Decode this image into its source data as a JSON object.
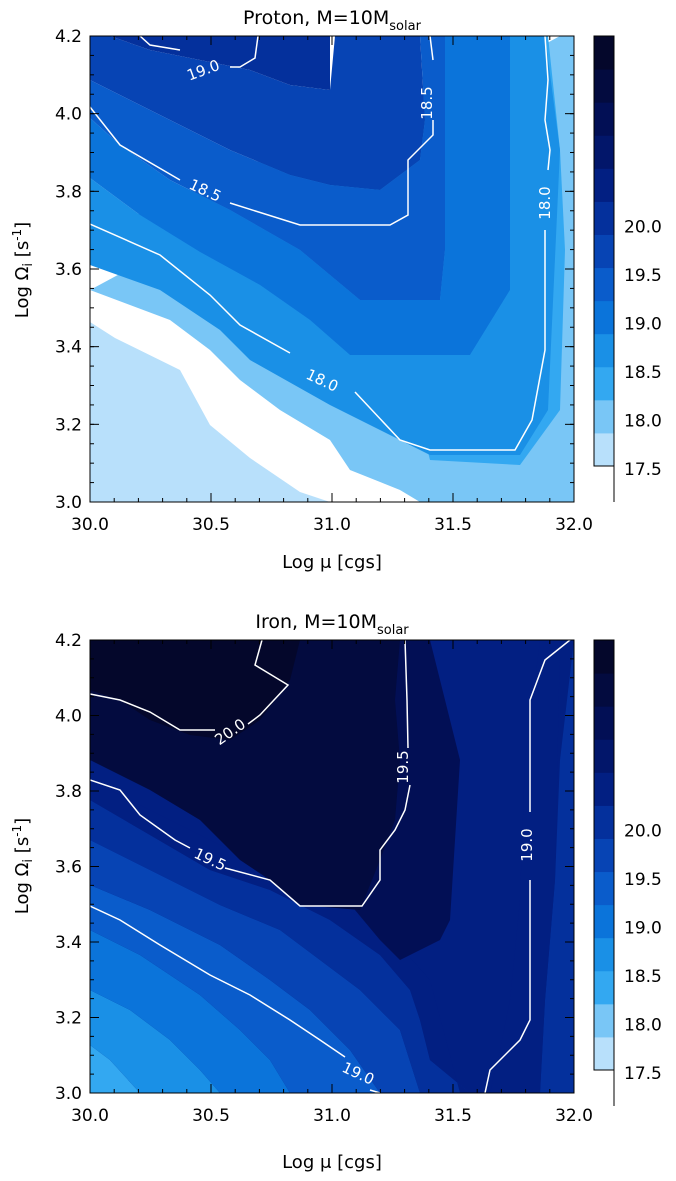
{
  "chart_data": [
    {
      "type": "contour",
      "title": "Proton, M=10M",
      "title_subscript": "solar",
      "xlabel": "Log μ [cgs]",
      "ylabel_main": "Log Ω",
      "ylabel_sub": "i",
      "ylabel_unit": "[s",
      "ylabel_exp": "-1",
      "ylabel_close": "]",
      "xlim": [
        30.0,
        32.0
      ],
      "ylim": [
        3.0,
        4.2
      ],
      "xticks": [
        "30.0",
        "30.5",
        "31.0",
        "31.5",
        "32.0"
      ],
      "yticks": [
        "3.0",
        "3.2",
        "3.4",
        "3.6",
        "3.8",
        "4.0",
        "4.2"
      ],
      "colorbar_ticks": [
        "17.5",
        "18.0",
        "18.5",
        "19.0",
        "19.5",
        "20.0"
      ],
      "colorbar_range": [
        17.25,
        20.25
      ],
      "grid": false,
      "filled_regions": [
        {
          "level": 17.5,
          "boundary": [
            [
              30.0,
              3.56
            ],
            [
              30.1,
              3.52
            ],
            [
              30.35,
              3.44
            ],
            [
              30.5,
              3.32
            ],
            [
              30.7,
              3.21
            ],
            [
              30.85,
              3.15
            ],
            [
              31.0,
              3.08
            ],
            [
              31.15,
              3.04
            ],
            [
              31.3,
              3.0
            ]
          ]
        },
        {
          "level": 17.75,
          "boundary": [
            [
              30.0,
              3.64
            ],
            [
              30.2,
              3.58
            ],
            [
              30.4,
              3.5
            ],
            [
              30.5,
              3.38
            ],
            [
              30.7,
              3.28
            ],
            [
              31.0,
              3.16
            ],
            [
              31.2,
              3.08
            ],
            [
              31.4,
              3.05
            ],
            [
              31.5,
              3.04
            ],
            [
              31.75,
              3.06
            ],
            [
              31.8,
              3.1
            ],
            [
              31.95,
              3.18
            ],
            [
              32.0,
              3.25
            ]
          ]
        },
        {
          "level": 18.0,
          "boundary": [
            [
              30.0,
              3.74
            ],
            [
              30.3,
              3.64
            ],
            [
              30.55,
              3.52
            ],
            [
              30.7,
              3.42
            ],
            [
              30.9,
              3.34
            ],
            [
              31.2,
              3.24
            ],
            [
              31.35,
              3.16
            ],
            [
              31.5,
              3.12
            ],
            [
              31.75,
              3.11
            ],
            [
              31.85,
              3.2
            ],
            [
              31.95,
              3.3
            ],
            [
              32.0,
              3.3
            ]
          ]
        },
        {
          "level": 18.25,
          "boundary": [
            [
              30.0,
              3.86
            ],
            [
              30.2,
              3.76
            ],
            [
              30.4,
              3.68
            ],
            [
              30.6,
              3.58
            ],
            [
              30.75,
              3.44
            ],
            [
              31.0,
              3.34
            ],
            [
              31.25,
              3.3
            ],
            [
              31.6,
              3.3
            ],
            [
              31.6,
              4.2
            ]
          ]
        },
        {
          "level": 18.5,
          "boundary": [
            [
              30.0,
              4.05
            ],
            [
              30.15,
              3.95
            ],
            [
              30.35,
              3.85
            ],
            [
              30.55,
              3.78
            ],
            [
              30.7,
              3.7
            ],
            [
              30.9,
              3.66
            ],
            [
              31.3,
              3.65
            ],
            [
              31.4,
              3.75
            ],
            [
              31.5,
              3.85
            ],
            [
              31.55,
              4.2
            ]
          ]
        },
        {
          "level": 18.75,
          "boundary": [
            [
              30.0,
              4.15
            ],
            [
              30.25,
              4.02
            ],
            [
              30.5,
              3.95
            ],
            [
              30.7,
              3.9
            ],
            [
              30.95,
              3.87
            ],
            [
              31.1,
              3.87
            ],
            [
              31.2,
              3.9
            ],
            [
              31.3,
              4.0
            ],
            [
              31.35,
              4.2
            ]
          ]
        },
        {
          "level": 19.0,
          "boundary": [
            [
              30.25,
              4.2
            ],
            [
              30.3,
              4.16
            ],
            [
              30.5,
              4.12
            ],
            [
              30.65,
              4.12
            ],
            [
              30.7,
              4.2
            ]
          ]
        }
      ],
      "contour_lines": [
        {
          "level": "19.0",
          "label": "19.0"
        },
        {
          "level": "18.5",
          "label": "18.5"
        },
        {
          "level": "18.0",
          "label": "18.0"
        }
      ]
    },
    {
      "type": "contour",
      "title": "Iron, M=10M",
      "title_subscript": "solar",
      "xlabel": "Log μ [cgs]",
      "ylabel_main": "Log Ω",
      "ylabel_sub": "i",
      "ylabel_unit": "[s",
      "ylabel_exp": "-1",
      "ylabel_close": "]",
      "xlim": [
        30.0,
        32.0
      ],
      "ylim": [
        3.0,
        4.2
      ],
      "xticks": [
        "30.0",
        "30.5",
        "31.0",
        "31.5",
        "32.0"
      ],
      "yticks": [
        "3.0",
        "3.2",
        "3.4",
        "3.6",
        "3.8",
        "4.0",
        "4.2"
      ],
      "colorbar_ticks": [
        "17.5",
        "18.0",
        "18.5",
        "19.0",
        "19.5",
        "20.0"
      ],
      "colorbar_range": [
        17.25,
        20.25
      ],
      "grid": false,
      "contour_lines": [
        {
          "level": "20.0",
          "label": "20.0"
        },
        {
          "level": "19.5",
          "label": "19.5"
        },
        {
          "level": "19.5",
          "label": "19.5"
        },
        {
          "level": "19.0",
          "label": "19.0"
        },
        {
          "level": "19.0",
          "label": "19.0"
        }
      ]
    }
  ],
  "colors": {
    "levels": [
      "#b8e0fb",
      "#79c6f6",
      "#33a8f1",
      "#1a90e6",
      "#0b74da",
      "#0a5ccb",
      "#0744b4",
      "#04309c",
      "#021f82",
      "#02166a",
      "#020f55",
      "#030b3f",
      "#04072b"
    ]
  }
}
